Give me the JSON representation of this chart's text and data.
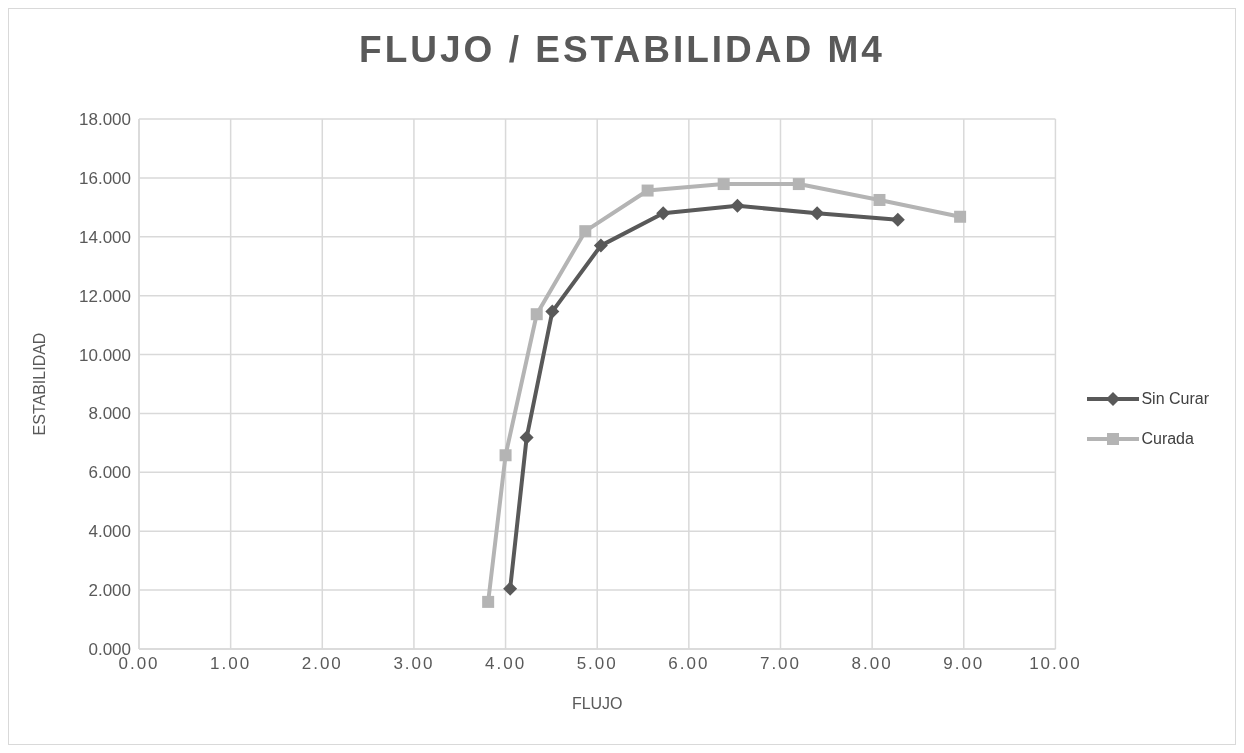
{
  "chart_data": {
    "type": "line",
    "title": "FLUJO / ESTABILIDAD M4",
    "xlabel": "FLUJO",
    "ylabel": "ESTABILIDAD",
    "xlim": [
      0,
      10
    ],
    "xticks": [
      {
        "value": 0,
        "label": "0.00"
      },
      {
        "value": 1,
        "label": "1.00"
      },
      {
        "value": 2,
        "label": "2.00"
      },
      {
        "value": 3,
        "label": "3.00"
      },
      {
        "value": 4,
        "label": "4.00"
      },
      {
        "value": 5,
        "label": "5.00"
      },
      {
        "value": 6,
        "label": "6.00"
      },
      {
        "value": 7,
        "label": "7.00"
      },
      {
        "value": 8,
        "label": "8.00"
      },
      {
        "value": 9,
        "label": "9.00"
      },
      {
        "value": 10,
        "label": "10.00"
      }
    ],
    "ylim": [
      0,
      18
    ],
    "yticks": [
      {
        "value": 0,
        "label": "0.000"
      },
      {
        "value": 2,
        "label": "2.000"
      },
      {
        "value": 4,
        "label": "4.000"
      },
      {
        "value": 6,
        "label": "6.000"
      },
      {
        "value": 8,
        "label": "8.000"
      },
      {
        "value": 10,
        "label": "10.000"
      },
      {
        "value": 12,
        "label": "12.000"
      },
      {
        "value": 14,
        "label": "14.000"
      },
      {
        "value": 16,
        "label": "16.000"
      },
      {
        "value": 18,
        "label": "18.000"
      }
    ],
    "grid": true,
    "legend": "right",
    "line_style": "solid",
    "series": [
      {
        "name": "Sin Curar",
        "color": "#595959",
        "marker": "diamond",
        "x": [
          4.05,
          4.23,
          4.51,
          5.04,
          5.72,
          6.53,
          7.4,
          8.28
        ],
        "values": [
          2.05,
          7.18,
          11.46,
          13.7,
          14.8,
          15.05,
          14.8,
          14.58
        ]
      },
      {
        "name": "Curada",
        "color": "#b4b4b4",
        "marker": "square",
        "x": [
          3.81,
          4.0,
          4.34,
          4.87,
          5.55,
          6.38,
          7.2,
          8.08,
          8.96
        ],
        "values": [
          1.6,
          6.58,
          11.37,
          14.19,
          15.57,
          15.79,
          15.79,
          15.25,
          14.68
        ]
      }
    ]
  }
}
